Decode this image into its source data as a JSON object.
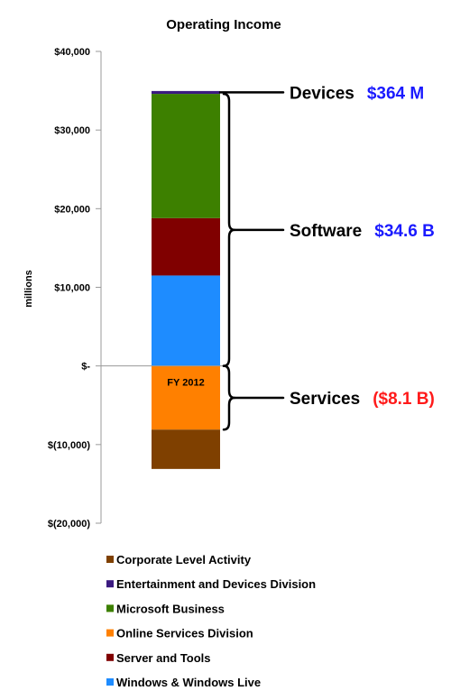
{
  "chart_data": {
    "type": "bar",
    "title": "Operating Income",
    "ylabel": "millions",
    "xlabel": "",
    "categories": [
      "FY 2012"
    ],
    "ylim": [
      -20000,
      40000
    ],
    "yticks": [
      {
        "value": 40000,
        "label": "$40,000"
      },
      {
        "value": 30000,
        "label": "$30,000"
      },
      {
        "value": 20000,
        "label": "$20,000"
      },
      {
        "value": 10000,
        "label": "$10,000"
      },
      {
        "value": 0,
        "label": "$-"
      },
      {
        "value": -10000,
        "label": "$(10,000)"
      },
      {
        "value": -20000,
        "label": "$(20,000)"
      }
    ],
    "series": [
      {
        "name": "Windows & Windows Live",
        "color": "#1e8cff",
        "values": [
          11500
        ]
      },
      {
        "name": "Server and Tools",
        "color": "#800000",
        "values": [
          7300
        ]
      },
      {
        "name": "Microsoft Business",
        "color": "#3d8000",
        "values": [
          15800
        ]
      },
      {
        "name": "Entertainment and Devices Division",
        "color": "#3b1a80",
        "values": [
          364
        ]
      },
      {
        "name": "Online Services Division",
        "color": "#ff8000",
        "values": [
          -8100
        ]
      },
      {
        "name": "Corporate Level Activity",
        "color": "#7f4000",
        "values": [
          -5000
        ]
      }
    ],
    "legend_order": [
      "Corporate Level Activity",
      "Entertainment and Devices Division",
      "Microsoft Business",
      "Online Services Division",
      "Server and Tools",
      "Windows & Windows Live"
    ],
    "legend_placement": "bottom-left",
    "grid": false,
    "annotations": [
      {
        "name": "Devices",
        "value": "$364 M",
        "target_value": 34800,
        "kind": "pointer",
        "negative": false
      },
      {
        "name": "Software",
        "value": "$34.6 B",
        "range": [
          0,
          34600
        ],
        "kind": "brace",
        "negative": false
      },
      {
        "name": "Services",
        "value": "($8.1 B)",
        "range": [
          -8100,
          0
        ],
        "kind": "brace",
        "negative": true
      }
    ]
  }
}
